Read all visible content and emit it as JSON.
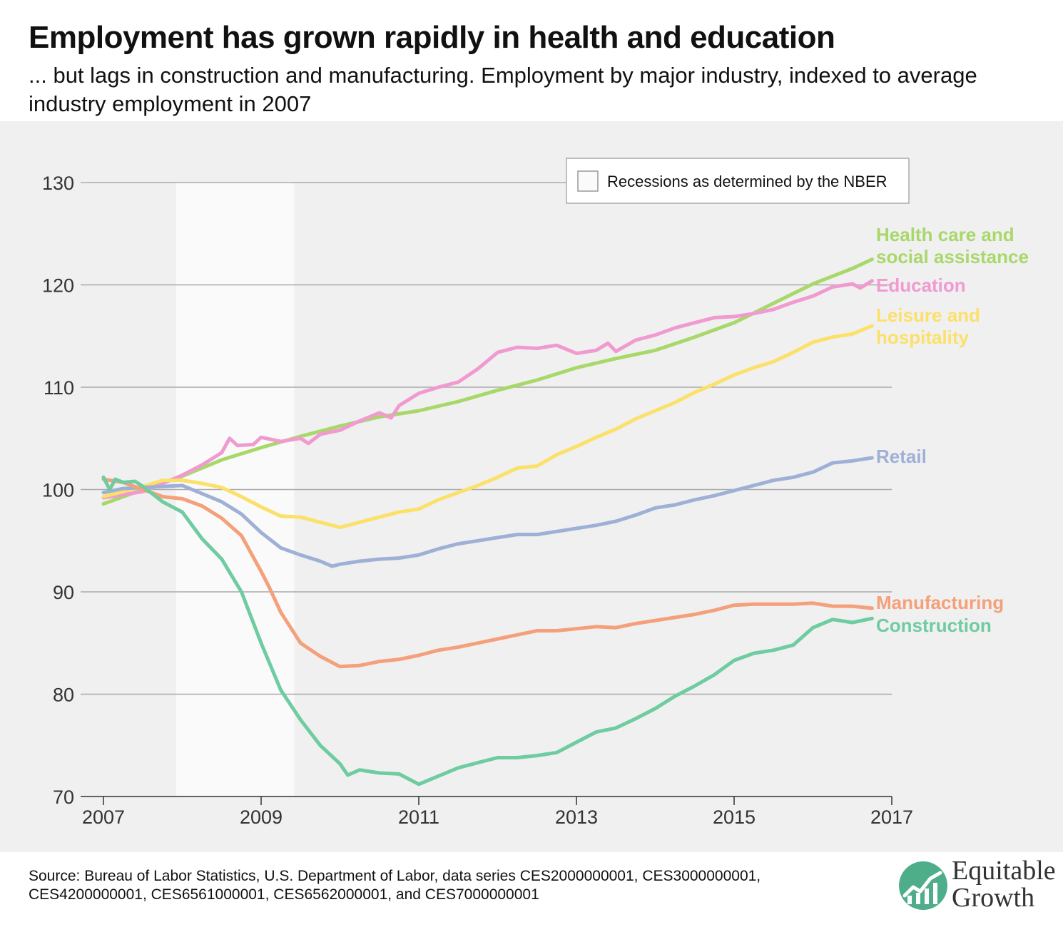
{
  "title": "Employment has grown rapidly in health and education",
  "subtitle": "... but lags in construction and manufacturing. Employment by major industry, indexed to average industry employment in 2007",
  "source": "Source: Bureau of Labor Statistics, U.S. Department of Labor, data series CES2000000001, CES3000000001, CES4200000001, CES6561000001, CES6562000001, and CES7000000001",
  "logo": {
    "line1": "Equitable",
    "line2": "Growth",
    "icon": "growth-chart-logo-icon",
    "color": "#4fae8a"
  },
  "chart_data": {
    "type": "line",
    "title": "",
    "xlabel": "",
    "ylabel": "",
    "xlim": [
      2007,
      2017
    ],
    "ylim": [
      70,
      130
    ],
    "x_ticks": [
      "2007",
      "2009",
      "2011",
      "2013",
      "2015",
      "2017"
    ],
    "y_ticks": [
      "70",
      "80",
      "90",
      "100",
      "110",
      "120",
      "130"
    ],
    "grid": "horizontal",
    "legend": {
      "label": "Recessions as determined by the NBER",
      "placement": "top-right"
    },
    "recession": {
      "start": 2007.92,
      "end": 2009.42,
      "color": "#fafafa"
    },
    "series": [
      {
        "name": "Health care and social assistance",
        "label_lines": [
          "Health care and",
          "social assistance"
        ],
        "color": "#a8d86a",
        "points": [
          [
            2007.0,
            98.6
          ],
          [
            2007.5,
            100.0
          ],
          [
            2008.0,
            101.3
          ],
          [
            2008.5,
            102.9
          ],
          [
            2009.0,
            104.1
          ],
          [
            2009.5,
            105.2
          ],
          [
            2010.0,
            106.2
          ],
          [
            2010.5,
            107.1
          ],
          [
            2011.0,
            107.7
          ],
          [
            2011.5,
            108.6
          ],
          [
            2012.0,
            109.7
          ],
          [
            2012.5,
            110.7
          ],
          [
            2013.0,
            111.9
          ],
          [
            2013.5,
            112.8
          ],
          [
            2014.0,
            113.6
          ],
          [
            2014.5,
            114.9
          ],
          [
            2015.0,
            116.3
          ],
          [
            2015.5,
            118.2
          ],
          [
            2016.0,
            120.1
          ],
          [
            2016.5,
            121.6
          ],
          [
            2016.75,
            122.5
          ]
        ]
      },
      {
        "name": "Education",
        "label_lines": [
          "Education"
        ],
        "color": "#f09ad0",
        "points": [
          [
            2007.0,
            99.2
          ],
          [
            2007.5,
            99.8
          ],
          [
            2007.75,
            100.6
          ],
          [
            2008.0,
            101.4
          ],
          [
            2008.25,
            102.4
          ],
          [
            2008.5,
            103.6
          ],
          [
            2008.6,
            105.0
          ],
          [
            2008.7,
            104.3
          ],
          [
            2008.9,
            104.4
          ],
          [
            2009.0,
            105.1
          ],
          [
            2009.25,
            104.7
          ],
          [
            2009.5,
            105.0
          ],
          [
            2009.6,
            104.5
          ],
          [
            2009.75,
            105.4
          ],
          [
            2010.0,
            105.8
          ],
          [
            2010.25,
            106.7
          ],
          [
            2010.5,
            107.5
          ],
          [
            2010.65,
            107.0
          ],
          [
            2010.75,
            108.2
          ],
          [
            2011.0,
            109.4
          ],
          [
            2011.25,
            110.0
          ],
          [
            2011.5,
            110.5
          ],
          [
            2011.75,
            111.8
          ],
          [
            2012.0,
            113.4
          ],
          [
            2012.25,
            113.9
          ],
          [
            2012.5,
            113.8
          ],
          [
            2012.75,
            114.1
          ],
          [
            2013.0,
            113.3
          ],
          [
            2013.25,
            113.6
          ],
          [
            2013.4,
            114.3
          ],
          [
            2013.5,
            113.5
          ],
          [
            2013.75,
            114.6
          ],
          [
            2014.0,
            115.1
          ],
          [
            2014.25,
            115.8
          ],
          [
            2014.5,
            116.3
          ],
          [
            2014.75,
            116.8
          ],
          [
            2015.0,
            116.9
          ],
          [
            2015.25,
            117.2
          ],
          [
            2015.5,
            117.6
          ],
          [
            2015.75,
            118.3
          ],
          [
            2016.0,
            118.9
          ],
          [
            2016.25,
            119.8
          ],
          [
            2016.5,
            120.1
          ],
          [
            2016.6,
            119.7
          ],
          [
            2016.75,
            120.4
          ]
        ]
      },
      {
        "name": "Leisure and hospitality",
        "label_lines": [
          "Leisure and",
          "hospitality"
        ],
        "color": "#fbe06a",
        "points": [
          [
            2007.0,
            99.3
          ],
          [
            2007.5,
            100.3
          ],
          [
            2007.75,
            100.9
          ],
          [
            2008.0,
            100.9
          ],
          [
            2008.25,
            100.6
          ],
          [
            2008.5,
            100.2
          ],
          [
            2008.75,
            99.3
          ],
          [
            2009.0,
            98.3
          ],
          [
            2009.25,
            97.4
          ],
          [
            2009.5,
            97.3
          ],
          [
            2009.75,
            96.8
          ],
          [
            2010.0,
            96.3
          ],
          [
            2010.25,
            96.8
          ],
          [
            2010.5,
            97.3
          ],
          [
            2010.75,
            97.8
          ],
          [
            2011.0,
            98.1
          ],
          [
            2011.25,
            99.0
          ],
          [
            2011.5,
            99.7
          ],
          [
            2011.75,
            100.4
          ],
          [
            2012.0,
            101.2
          ],
          [
            2012.25,
            102.1
          ],
          [
            2012.5,
            102.3
          ],
          [
            2012.75,
            103.4
          ],
          [
            2013.0,
            104.2
          ],
          [
            2013.25,
            105.1
          ],
          [
            2013.5,
            105.9
          ],
          [
            2013.75,
            106.9
          ],
          [
            2014.0,
            107.7
          ],
          [
            2014.25,
            108.5
          ],
          [
            2014.5,
            109.5
          ],
          [
            2014.75,
            110.3
          ],
          [
            2015.0,
            111.2
          ],
          [
            2015.25,
            111.9
          ],
          [
            2015.5,
            112.5
          ],
          [
            2015.75,
            113.4
          ],
          [
            2016.0,
            114.4
          ],
          [
            2016.25,
            114.9
          ],
          [
            2016.5,
            115.2
          ],
          [
            2016.75,
            116.0
          ]
        ]
      },
      {
        "name": "Retail",
        "label_lines": [
          "Retail"
        ],
        "color": "#9fb0d6",
        "points": [
          [
            2007.0,
            99.7
          ],
          [
            2007.25,
            100.1
          ],
          [
            2007.5,
            100.2
          ],
          [
            2007.75,
            100.3
          ],
          [
            2008.0,
            100.4
          ],
          [
            2008.25,
            99.6
          ],
          [
            2008.5,
            98.8
          ],
          [
            2008.75,
            97.6
          ],
          [
            2009.0,
            95.8
          ],
          [
            2009.25,
            94.3
          ],
          [
            2009.5,
            93.6
          ],
          [
            2009.75,
            93.0
          ],
          [
            2009.9,
            92.5
          ],
          [
            2010.0,
            92.7
          ],
          [
            2010.25,
            93.0
          ],
          [
            2010.5,
            93.2
          ],
          [
            2010.75,
            93.3
          ],
          [
            2011.0,
            93.6
          ],
          [
            2011.25,
            94.2
          ],
          [
            2011.5,
            94.7
          ],
          [
            2011.75,
            95.0
          ],
          [
            2012.0,
            95.3
          ],
          [
            2012.25,
            95.6
          ],
          [
            2012.5,
            95.6
          ],
          [
            2012.75,
            95.9
          ],
          [
            2013.0,
            96.2
          ],
          [
            2013.25,
            96.5
          ],
          [
            2013.5,
            96.9
          ],
          [
            2013.75,
            97.5
          ],
          [
            2014.0,
            98.2
          ],
          [
            2014.25,
            98.5
          ],
          [
            2014.5,
            99.0
          ],
          [
            2014.75,
            99.4
          ],
          [
            2015.0,
            99.9
          ],
          [
            2015.25,
            100.4
          ],
          [
            2015.5,
            100.9
          ],
          [
            2015.75,
            101.2
          ],
          [
            2016.0,
            101.7
          ],
          [
            2016.25,
            102.6
          ],
          [
            2016.5,
            102.8
          ],
          [
            2016.75,
            103.1
          ]
        ]
      },
      {
        "name": "Manufacturing",
        "label_lines": [
          "Manufacturing"
        ],
        "color": "#f4a07a",
        "points": [
          [
            2007.0,
            101.0
          ],
          [
            2007.25,
            100.7
          ],
          [
            2007.5,
            100.0
          ],
          [
            2007.75,
            99.3
          ],
          [
            2008.0,
            99.1
          ],
          [
            2008.25,
            98.4
          ],
          [
            2008.5,
            97.2
          ],
          [
            2008.75,
            95.5
          ],
          [
            2009.0,
            92.0
          ],
          [
            2009.1,
            90.5
          ],
          [
            2009.25,
            88.0
          ],
          [
            2009.5,
            85.0
          ],
          [
            2009.75,
            83.7
          ],
          [
            2010.0,
            82.7
          ],
          [
            2010.25,
            82.8
          ],
          [
            2010.5,
            83.2
          ],
          [
            2010.75,
            83.4
          ],
          [
            2011.0,
            83.8
          ],
          [
            2011.25,
            84.3
          ],
          [
            2011.5,
            84.6
          ],
          [
            2011.75,
            85.0
          ],
          [
            2012.0,
            85.4
          ],
          [
            2012.25,
            85.8
          ],
          [
            2012.5,
            86.2
          ],
          [
            2012.75,
            86.2
          ],
          [
            2013.0,
            86.4
          ],
          [
            2013.25,
            86.6
          ],
          [
            2013.5,
            86.5
          ],
          [
            2013.75,
            86.9
          ],
          [
            2014.0,
            87.2
          ],
          [
            2014.25,
            87.5
          ],
          [
            2014.5,
            87.8
          ],
          [
            2014.75,
            88.2
          ],
          [
            2015.0,
            88.7
          ],
          [
            2015.25,
            88.8
          ],
          [
            2015.5,
            88.8
          ],
          [
            2015.75,
            88.8
          ],
          [
            2016.0,
            88.9
          ],
          [
            2016.25,
            88.6
          ],
          [
            2016.5,
            88.6
          ],
          [
            2016.75,
            88.4
          ]
        ]
      },
      {
        "name": "Construction",
        "label_lines": [
          "Construction"
        ],
        "color": "#6fcca0",
        "points": [
          [
            2007.0,
            101.2
          ],
          [
            2007.08,
            100.0
          ],
          [
            2007.15,
            101.0
          ],
          [
            2007.25,
            100.7
          ],
          [
            2007.4,
            100.8
          ],
          [
            2007.5,
            100.3
          ],
          [
            2007.75,
            98.8
          ],
          [
            2008.0,
            97.8
          ],
          [
            2008.25,
            95.2
          ],
          [
            2008.5,
            93.2
          ],
          [
            2008.75,
            90.0
          ],
          [
            2009.0,
            85.0
          ],
          [
            2009.25,
            80.4
          ],
          [
            2009.5,
            77.5
          ],
          [
            2009.75,
            75.0
          ],
          [
            2010.0,
            73.2
          ],
          [
            2010.1,
            72.1
          ],
          [
            2010.25,
            72.6
          ],
          [
            2010.5,
            72.3
          ],
          [
            2010.75,
            72.2
          ],
          [
            2011.0,
            71.2
          ],
          [
            2011.25,
            72.0
          ],
          [
            2011.5,
            72.8
          ],
          [
            2011.75,
            73.3
          ],
          [
            2012.0,
            73.8
          ],
          [
            2012.25,
            73.8
          ],
          [
            2012.5,
            74.0
          ],
          [
            2012.75,
            74.3
          ],
          [
            2013.0,
            75.3
          ],
          [
            2013.25,
            76.3
          ],
          [
            2013.5,
            76.7
          ],
          [
            2013.75,
            77.6
          ],
          [
            2014.0,
            78.6
          ],
          [
            2014.25,
            79.8
          ],
          [
            2014.5,
            80.8
          ],
          [
            2014.75,
            81.9
          ],
          [
            2015.0,
            83.3
          ],
          [
            2015.25,
            84.0
          ],
          [
            2015.5,
            84.3
          ],
          [
            2015.75,
            84.8
          ],
          [
            2016.0,
            86.5
          ],
          [
            2016.25,
            87.3
          ],
          [
            2016.5,
            87.0
          ],
          [
            2016.75,
            87.4
          ]
        ]
      }
    ]
  }
}
